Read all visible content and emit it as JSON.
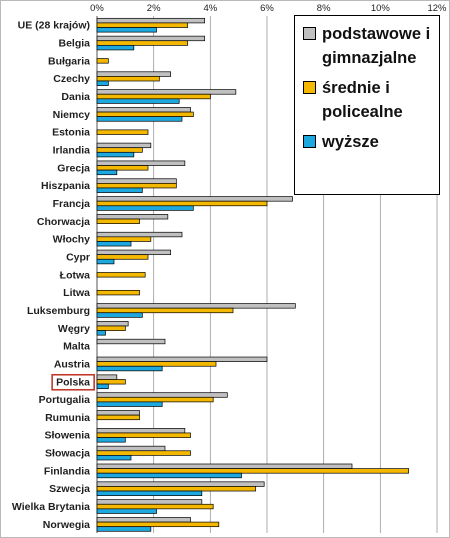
{
  "chart_data": {
    "type": "bar",
    "orientation": "horizontal",
    "xlim": [
      0,
      12
    ],
    "x_ticks": [
      "0%",
      "2%",
      "4%",
      "6%",
      "8%",
      "10%",
      "12%"
    ],
    "grid": "vertical",
    "legend_position": "top-right",
    "highlighted_category": "Polska",
    "categories": [
      "UE (28 krajów)",
      "Belgia",
      "Bułgaria",
      "Czechy",
      "Dania",
      "Niemcy",
      "Estonia",
      "Irlandia",
      "Grecja",
      "Hiszpania",
      "Francja",
      "Chorwacja",
      "Włochy",
      "Cypr",
      "Łotwa",
      "Litwa",
      "Luksemburg",
      "Węgry",
      "Malta",
      "Austria",
      "Polska",
      "Portugalia",
      "Rumunia",
      "Słowenia",
      "Słowacja",
      "Finlandia",
      "Szwecja",
      "Wielka Brytania",
      "Norwegia"
    ],
    "series": [
      {
        "name": "podstawowe i gimnazjalne",
        "color": "#c0c0c0",
        "values": [
          3.8,
          3.8,
          null,
          2.6,
          4.9,
          3.3,
          null,
          1.9,
          3.1,
          2.8,
          6.9,
          2.5,
          3.0,
          2.6,
          null,
          null,
          7.0,
          1.1,
          2.4,
          6.0,
          0.7,
          4.6,
          1.5,
          3.1,
          2.4,
          9.0,
          5.9,
          3.7,
          3.3
        ]
      },
      {
        "name": "średnie i policealne",
        "color": "#f5b800",
        "values": [
          3.2,
          3.2,
          0.4,
          2.2,
          4.0,
          3.4,
          1.8,
          1.6,
          1.8,
          2.8,
          6.0,
          1.5,
          1.9,
          1.8,
          1.7,
          1.5,
          4.8,
          1.0,
          null,
          4.2,
          1.0,
          4.1,
          1.5,
          3.3,
          3.3,
          11.0,
          5.6,
          4.1,
          4.3
        ]
      },
      {
        "name": "wyższe",
        "color": "#1ea8e0",
        "values": [
          2.1,
          1.3,
          null,
          0.4,
          2.9,
          3.0,
          null,
          1.3,
          0.7,
          1.6,
          3.4,
          null,
          1.2,
          0.6,
          null,
          null,
          1.6,
          0.3,
          null,
          2.3,
          0.4,
          2.3,
          null,
          1.0,
          1.2,
          5.1,
          3.7,
          2.1,
          1.9
        ]
      }
    ]
  },
  "legend": {
    "items": [
      {
        "label": "podstawowe i gimnazjalne",
        "color": "#c0c0c0"
      },
      {
        "label": "średnie i policealne",
        "color": "#f5b800"
      },
      {
        "label": "wyższe",
        "color": "#1ea8e0"
      }
    ]
  }
}
